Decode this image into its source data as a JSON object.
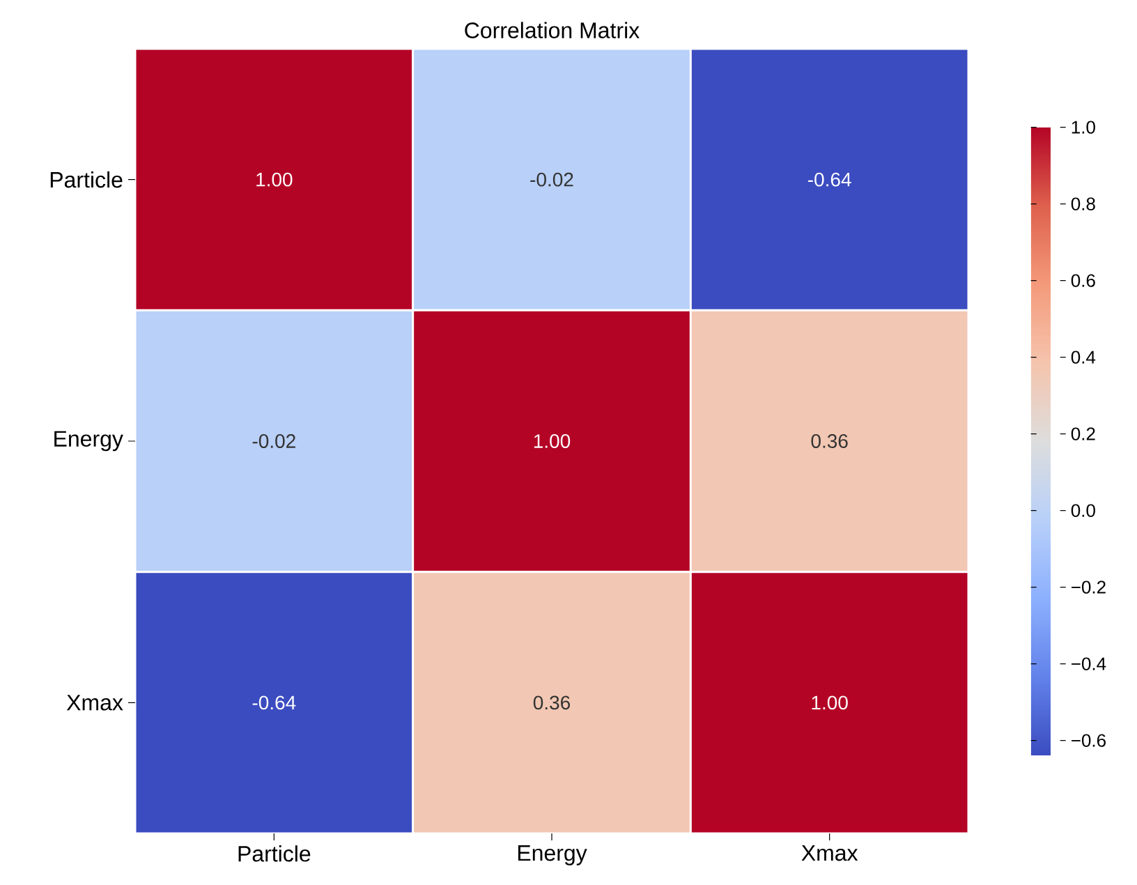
{
  "chart_data": {
    "type": "heatmap",
    "title": "Correlation Matrix",
    "categories": [
      "Particle",
      "Energy",
      "Xmax"
    ],
    "y_categories": [
      "Particle",
      "Energy",
      "Xmax"
    ],
    "cells": [
      [
        1.0,
        -0.02,
        -0.64
      ],
      [
        -0.02,
        1.0,
        0.36
      ],
      [
        -0.64,
        0.36,
        1.0
      ]
    ],
    "cell_labels": [
      [
        "1.00",
        "-0.02",
        "-0.64"
      ],
      [
        "-0.02",
        "1.00",
        "0.36"
      ],
      [
        "-0.64",
        "0.36",
        "1.00"
      ]
    ],
    "clim": [
      -0.64,
      1.0
    ],
    "cticks": [
      {
        "value": -0.6,
        "label": "−0.6"
      },
      {
        "value": -0.4,
        "label": "−0.4"
      },
      {
        "value": -0.2,
        "label": "−0.2"
      },
      {
        "value": 0,
        "label": "0.0"
      },
      {
        "value": 0.2,
        "label": "0.2"
      },
      {
        "value": 0.4,
        "label": "0.4"
      },
      {
        "value": 0.6,
        "label": "0.6"
      },
      {
        "value": 0.8,
        "label": "0.8"
      },
      {
        "value": 1.0,
        "label": "1.0"
      }
    ]
  }
}
